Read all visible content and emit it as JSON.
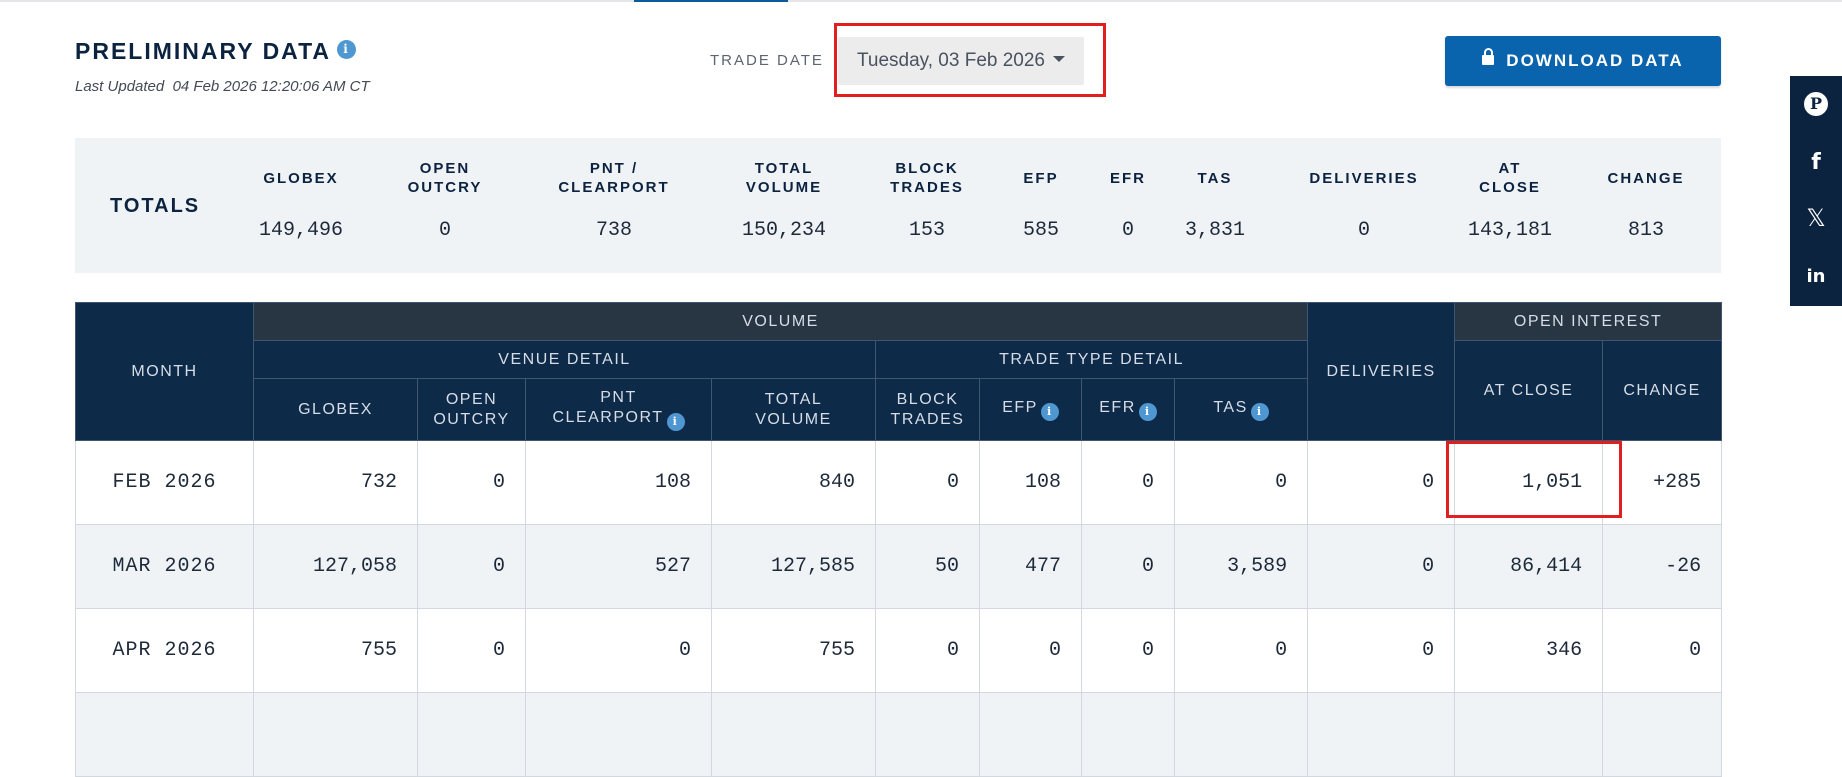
{
  "header": {
    "title": "PRELIMINARY DATA",
    "last_updated": "Last Updated  04 Feb 2026 12:20:06 AM CT",
    "trade_date_label": "TRADE DATE",
    "trade_date_value": "Tuesday, 03 Feb 2026",
    "download_label": "DOWNLOAD DATA"
  },
  "totals": {
    "label": "TOTALS",
    "columns": [
      {
        "line1": "GLOBEX",
        "line2": "",
        "value": "149,496"
      },
      {
        "line1": "OPEN",
        "line2": "OUTCRY",
        "value": "0"
      },
      {
        "line1": "PNT /",
        "line2": "CLEARPORT",
        "value": "738"
      },
      {
        "line1": "TOTAL",
        "line2": "VOLUME",
        "value": "150,234"
      },
      {
        "line1": "BLOCK",
        "line2": "TRADES",
        "value": "153"
      },
      {
        "line1": "EFP",
        "line2": "",
        "value": "585"
      },
      {
        "line1": "EFR",
        "line2": "",
        "value": "0"
      },
      {
        "line1": "TAS",
        "line2": "",
        "value": "3,831"
      },
      {
        "line1": "DELIVERIES",
        "line2": "",
        "value": "0"
      },
      {
        "line1": "AT",
        "line2": "CLOSE",
        "value": "143,181"
      },
      {
        "line1": "CHANGE",
        "line2": "",
        "value": "813"
      }
    ]
  },
  "table": {
    "group_headers": {
      "month": "MONTH",
      "volume": "VOLUME",
      "venue_detail": "VENUE DETAIL",
      "trade_type_detail": "TRADE TYPE DETAIL",
      "deliveries": "DELIVERIES",
      "open_interest": "OPEN INTEREST"
    },
    "columns": {
      "globex": "GLOBEX",
      "open_outcry_1": "OPEN",
      "open_outcry_2": "OUTCRY",
      "pnt_1": "PNT",
      "pnt_2": "CLEARPORT",
      "total_1": "TOTAL",
      "total_2": "VOLUME",
      "block_1": "BLOCK",
      "block_2": "TRADES",
      "efp": "EFP",
      "efr": "EFR",
      "tas": "TAS",
      "at_close": "AT CLOSE",
      "change": "CHANGE"
    },
    "rows": [
      {
        "month": "FEB 2026",
        "globex": "732",
        "open_outcry": "0",
        "pnt": "108",
        "total": "840",
        "block": "0",
        "efp": "108",
        "efr": "0",
        "tas": "0",
        "deliveries": "0",
        "at_close": "1,051",
        "change": "+285"
      },
      {
        "month": "MAR 2026",
        "globex": "127,058",
        "open_outcry": "0",
        "pnt": "527",
        "total": "127,585",
        "block": "50",
        "efp": "477",
        "efr": "0",
        "tas": "3,589",
        "deliveries": "0",
        "at_close": "86,414",
        "change": "-26"
      },
      {
        "month": "APR 2026",
        "globex": "755",
        "open_outcry": "0",
        "pnt": "0",
        "total": "755",
        "block": "0",
        "efp": "0",
        "efr": "0",
        "tas": "0",
        "deliveries": "0",
        "at_close": "346",
        "change": "0"
      }
    ]
  },
  "icons": {
    "info": "i",
    "pinterest": "P",
    "facebook": "f",
    "x": "𝕏",
    "linkedin": "in"
  },
  "colors": {
    "navy": "#0c2340",
    "button_blue": "#0a63ad",
    "positive": "#1a8a1a",
    "negative": "#e02020"
  }
}
